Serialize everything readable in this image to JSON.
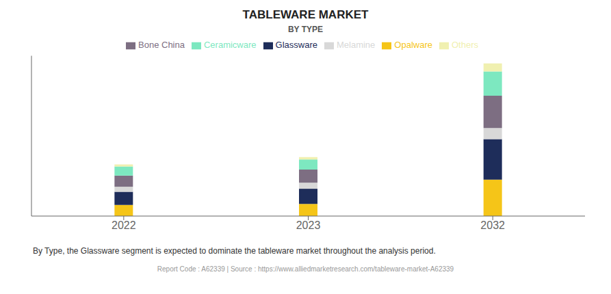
{
  "chart_data": {
    "type": "bar",
    "title": "TABLEWARE MARKET",
    "subtitle": "BY TYPE",
    "categories": [
      "2022",
      "2023",
      "2032"
    ],
    "series": [
      {
        "name": "Opalware",
        "color": "#f5c518",
        "values": [
          5.5,
          6.0,
          18.0
        ]
      },
      {
        "name": "Glassware",
        "color": "#1e2d5a",
        "values": [
          6.5,
          7.5,
          20.0
        ]
      },
      {
        "name": "Melamine",
        "color": "#d8d8d8",
        "values": [
          2.5,
          3.0,
          5.5
        ]
      },
      {
        "name": "Bone China",
        "color": "#7d6e82",
        "values": [
          5.5,
          6.5,
          16.0
        ]
      },
      {
        "name": "Ceramicware",
        "color": "#7de8c0",
        "values": [
          4.5,
          5.0,
          12.0
        ]
      },
      {
        "name": "Others",
        "color": "#f0f0b0",
        "values": [
          1.0,
          1.2,
          4.0
        ]
      }
    ],
    "stacked": true,
    "ylim": [
      0,
      79.275
    ],
    "grid": false,
    "legend": "top",
    "tick_labels": "x",
    "annotations": [
      "By Type, the Glassware segment is expected to dominate the tableware market throughout the analysis period.",
      "Report Code : A62339  |  Source : https://www.alliedmarketresearch.com/tableware-market-A62339"
    ]
  }
}
